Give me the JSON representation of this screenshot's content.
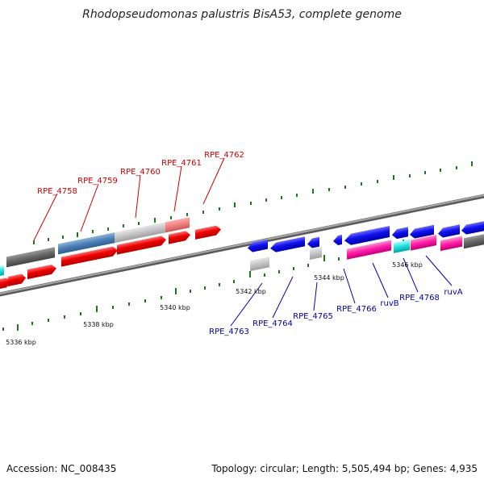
{
  "title": "Rhodopseudomonas palustris BisA53, complete genome",
  "accession": "Accession: NC_008435",
  "topology": "Topology: circular; Length: 5,505,494 bp; Genes: 4,935",
  "colors": {
    "forward_label": "#cc0000",
    "reverse_label": "#0000aa",
    "backbone": "#808080",
    "tick": "#1a7a1a"
  },
  "scale_labels": [
    "5336 kbp",
    "5338 kbp",
    "5340 kbp",
    "5342 kbp",
    "5344 kbp",
    "5346 kbp"
  ],
  "forward_gene_labels": [
    "RPE_4758",
    "RPE_4759",
    "RPE_4760",
    "RPE_4761",
    "RPE_4762"
  ],
  "reverse_gene_labels": [
    "RPE_4763",
    "RPE_4764",
    "RPE_4765",
    "RPE_4766",
    "ruvB",
    "RPE_4768",
    "ruvA"
  ]
}
